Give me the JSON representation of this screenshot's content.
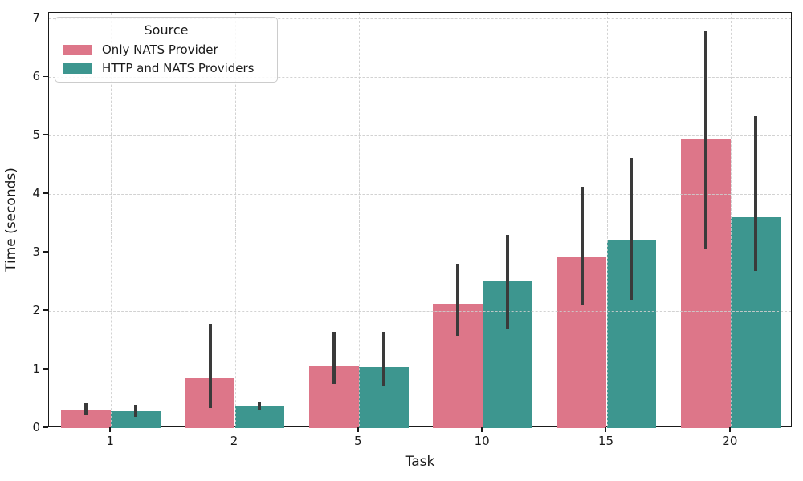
{
  "chart_data": {
    "type": "bar",
    "title": "",
    "xlabel": "Task",
    "ylabel": "Time (seconds)",
    "categories": [
      "1",
      "2",
      "5",
      "10",
      "15",
      "20"
    ],
    "series": [
      {
        "name": "Only NATS Provider",
        "color": "#dd7689",
        "values": [
          0.31,
          0.85,
          1.07,
          2.12,
          2.93,
          4.93
        ],
        "err_low": [
          0.22,
          0.34,
          0.76,
          1.58,
          2.1,
          3.07
        ],
        "err_high": [
          0.43,
          1.78,
          1.65,
          2.81,
          4.12,
          6.78
        ]
      },
      {
        "name": "HTTP and NATS Providers",
        "color": "#3d968f",
        "values": [
          0.29,
          0.38,
          1.04,
          2.52,
          3.22,
          3.61
        ],
        "err_low": [
          0.19,
          0.32,
          0.73,
          1.7,
          2.19,
          2.68
        ],
        "err_high": [
          0.4,
          0.45,
          1.64,
          3.3,
          4.62,
          5.33
        ]
      }
    ],
    "yticks": [
      0,
      1,
      2,
      3,
      4,
      5,
      6,
      7
    ],
    "ylim": [
      0,
      7.1
    ],
    "bar_group_width": 0.8,
    "grid": "dashed, horizontal and vertical, drawn above bars",
    "legend": {
      "title": "Source",
      "position": "upper left"
    },
    "error_bar_color": "#3a3a3a",
    "spine_color": "#1a1a1a",
    "grid_color": "#cdcdcd"
  }
}
